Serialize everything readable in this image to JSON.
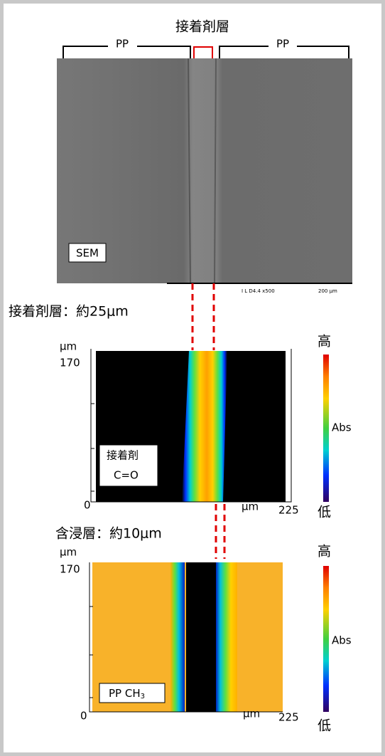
{
  "header": {
    "title": "接着剤層",
    "left_label": "PP",
    "right_label": "PP"
  },
  "sem": {
    "label": "SEM",
    "scale_info": "I L   D4.4   x500",
    "scale_length": "200 μm"
  },
  "adhesive_note": "接着剤層：約25μm",
  "map1": {
    "unit_top": "μm",
    "y_max": "170",
    "y_min": "0",
    "x_unit": "μm",
    "x_max": "225",
    "label_line1": "接着剤",
    "label_line2": "C=O",
    "colorbar": {
      "high": "高",
      "mid": "Abs",
      "low": "低"
    }
  },
  "impregnation_note": "含浸層：約10μm",
  "map2": {
    "unit_top": "μm",
    "y_max": "170",
    "y_min": "0",
    "x_unit": "μm",
    "x_max": "225",
    "label": "PP CH",
    "label_subscript": "3",
    "colorbar": {
      "high": "高",
      "mid": "Abs",
      "low": "低"
    }
  }
}
